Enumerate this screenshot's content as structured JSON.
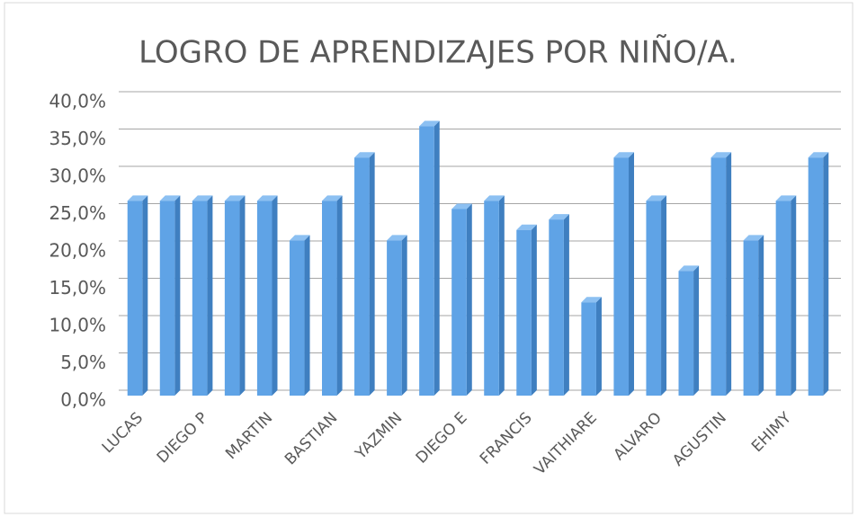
{
  "chart_data": {
    "type": "bar",
    "title": "LOGRO DE APRENDIZAJES POR NIÑO/A.",
    "categories": [
      "LUCAS",
      null,
      "DIEGO P",
      null,
      "MARTIN",
      null,
      "BASTIAN",
      null,
      "YAZMIN",
      null,
      "DIEGO E",
      null,
      "FRANCIS",
      null,
      "VAITHIARE",
      null,
      "ALVARO",
      null,
      "AGUSTIN",
      null,
      "EHIMY",
      null
    ],
    "values": [
      26.1,
      26.1,
      26.1,
      26.1,
      26.1,
      20.8,
      26.1,
      31.9,
      20.8,
      36.1,
      25.0,
      26.1,
      22.2,
      23.6,
      12.5,
      31.9,
      26.1,
      16.7,
      31.9,
      20.8,
      26.1,
      31.9
    ],
    "color": "#5fa3e6",
    "ylim": [
      0,
      40
    ],
    "yticks": [
      {
        "value": 0,
        "label": "0,0%"
      },
      {
        "value": 5,
        "label": "5,0%"
      },
      {
        "value": 10,
        "label": "10,0%"
      },
      {
        "value": 15,
        "label": "15,0%"
      },
      {
        "value": 20,
        "label": "20,0%"
      },
      {
        "value": 25,
        "label": "25,0%"
      },
      {
        "value": 30,
        "label": "30,0%"
      },
      {
        "value": 35,
        "label": "35,0%"
      },
      {
        "value": 40,
        "label": "40,0%"
      }
    ],
    "grid": true
  }
}
